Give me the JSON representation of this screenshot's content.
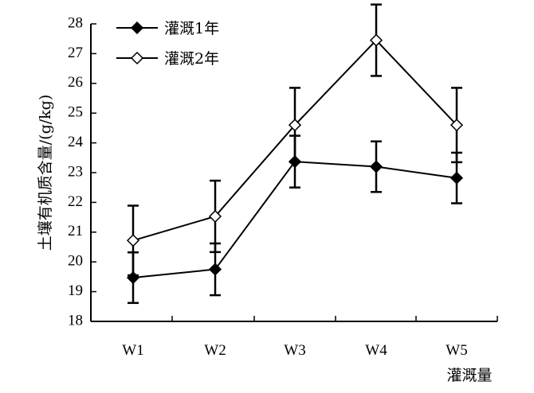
{
  "chart_data": {
    "type": "line",
    "title": "",
    "xlabel": "灌溉量",
    "ylabel": "土壤有机质含量/(g/kg)",
    "categories": [
      "W1",
      "W2",
      "W3",
      "W4",
      "W5"
    ],
    "ylim": [
      18,
      28
    ],
    "yticks": [
      18,
      19,
      20,
      21,
      22,
      23,
      24,
      25,
      26,
      27,
      28
    ],
    "grid": false,
    "legend_position": "top-left",
    "series": [
      {
        "name": "灌溉1年",
        "marker": "filled-diamond",
        "values": [
          19.47,
          19.75,
          23.37,
          23.2,
          22.82
        ],
        "errors": [
          0.85,
          0.87,
          0.87,
          0.85,
          0.85
        ],
        "color": "#000000"
      },
      {
        "name": "灌溉2年",
        "marker": "open-diamond",
        "values": [
          20.72,
          21.53,
          24.6,
          27.45,
          24.6
        ],
        "errors": [
          1.17,
          1.2,
          1.25,
          1.2,
          1.25
        ],
        "color": "#000000"
      }
    ]
  }
}
